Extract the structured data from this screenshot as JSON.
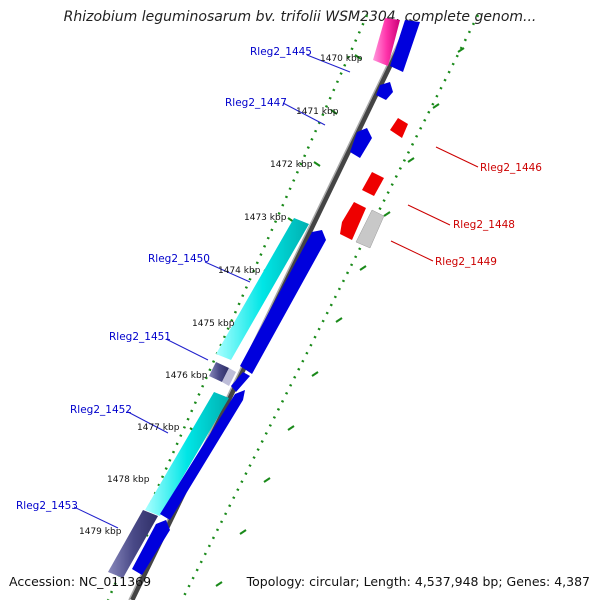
{
  "title": "Rhizobium leguminosarum bv. trifolii WSM2304, complete genom...",
  "footer": {
    "accession": "Accession: NC_011369",
    "summary": "Topology: circular; Length: 4,537,948 bp; Genes: 4,387"
  },
  "colors": {
    "forward_cds": "#0000ee",
    "reverse_cds": "#ee0000",
    "rna": "#00eeee",
    "hit_magenta": "#ff33aa",
    "pseudo_gray": "#c8c8c8",
    "backbone": "#666666",
    "tick_green": "#228822",
    "label_blue": "#0000cc",
    "label_red": "#cc0000"
  },
  "scale_labels": [
    {
      "text": "1470 kbp"
    },
    {
      "text": "1471 kbp"
    },
    {
      "text": "1472 kbp"
    },
    {
      "text": "1473 kbp"
    },
    {
      "text": "1474 kbp"
    },
    {
      "text": "1475 kbp"
    },
    {
      "text": "1476 kbp"
    },
    {
      "text": "1477 kbp"
    },
    {
      "text": "1478 kbp"
    },
    {
      "text": "1479 kbp"
    }
  ],
  "genes_left": [
    {
      "name": "Rleg2_1445"
    },
    {
      "name": "Rleg2_1447"
    },
    {
      "name": "Rleg2_1450"
    },
    {
      "name": "Rleg2_1451"
    },
    {
      "name": "Rleg2_1452"
    },
    {
      "name": "Rleg2_1453"
    }
  ],
  "genes_right": [
    {
      "name": "Rleg2_1446"
    },
    {
      "name": "Rleg2_1448"
    },
    {
      "name": "Rleg2_1449"
    }
  ]
}
